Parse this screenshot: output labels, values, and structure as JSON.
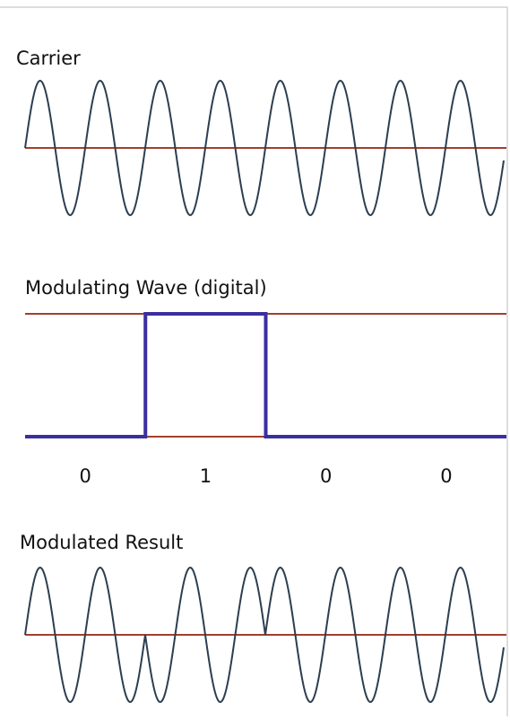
{
  "carrier": {
    "title": "Carrier"
  },
  "modulating": {
    "title": "Modulating Wave (digital)",
    "bits": [
      "0",
      "1",
      "0",
      "0"
    ]
  },
  "result": {
    "title": "Modulated Result"
  }
}
